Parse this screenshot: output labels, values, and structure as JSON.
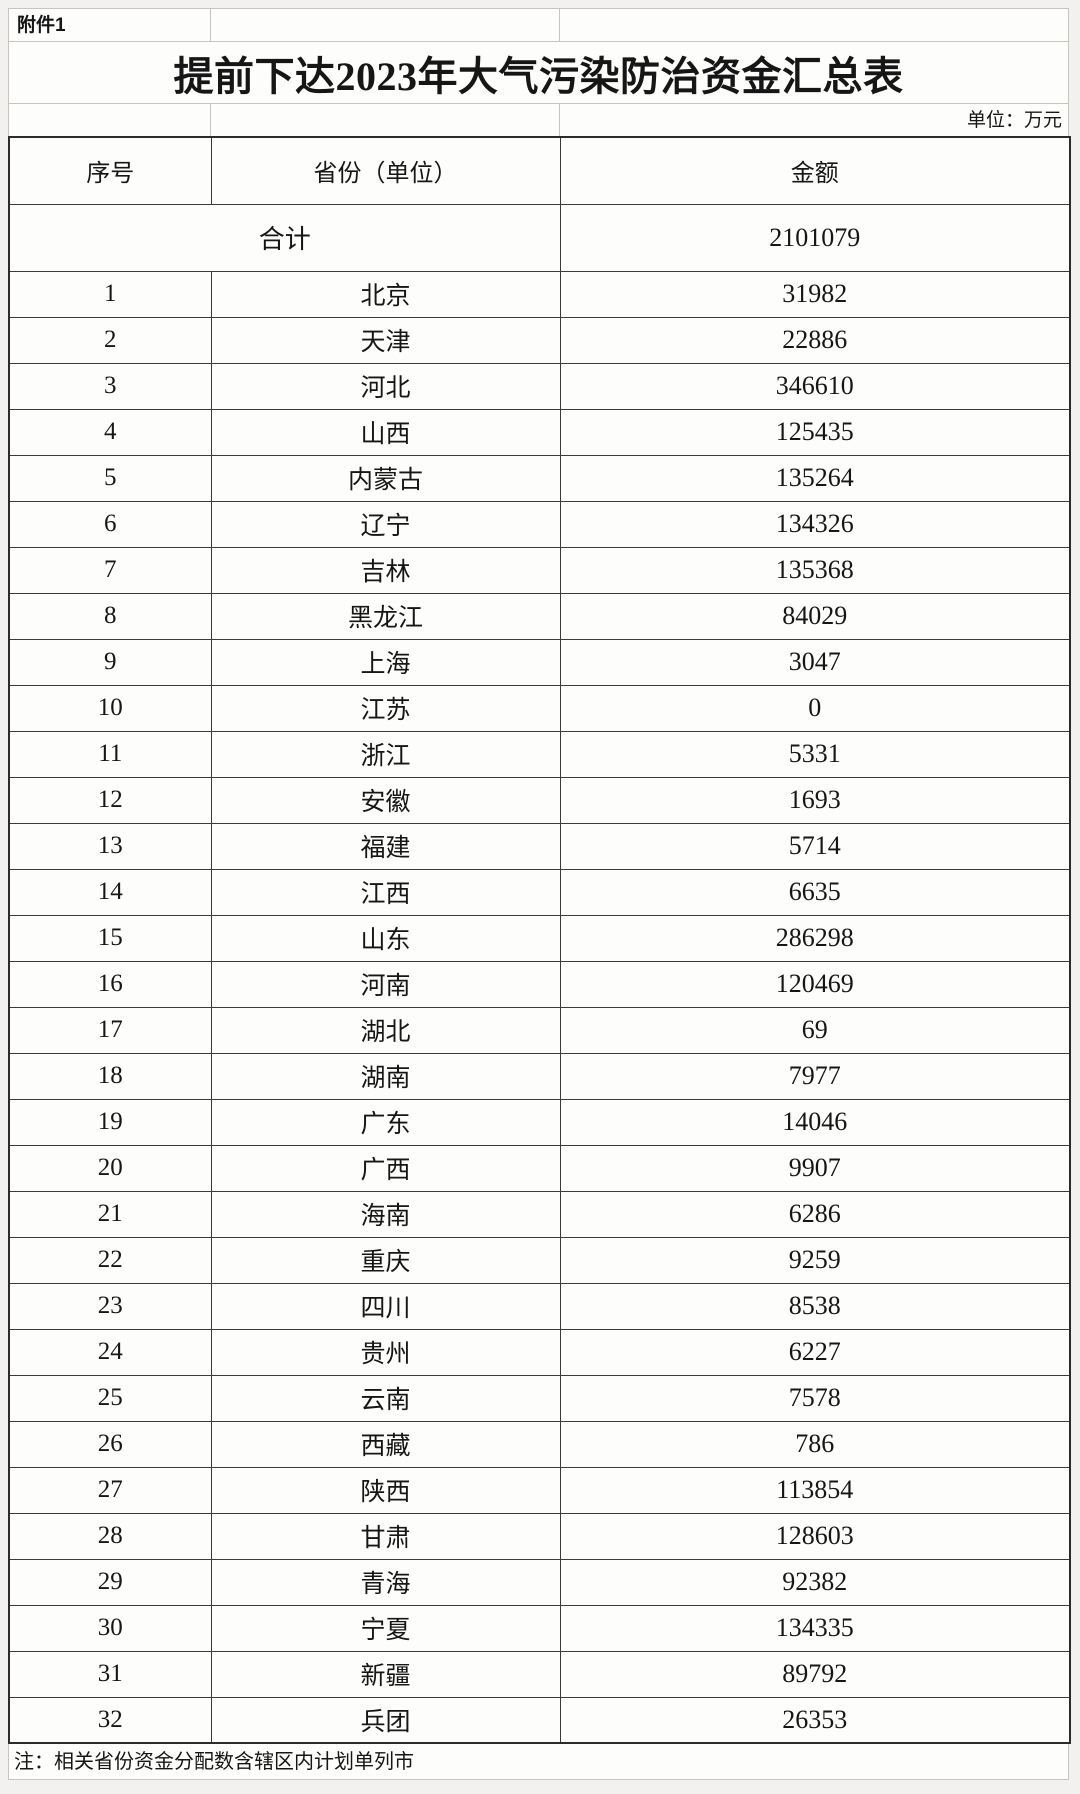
{
  "document": {
    "attachment_label": "附件1",
    "title": "提前下达2023年大气污染防治资金汇总表",
    "unit_note": "单位：万元",
    "footnote": "注：相关省份资金分配数含辖区内计划单列市"
  },
  "table": {
    "headers": [
      "序号",
      "省份（单位）",
      "金额"
    ],
    "total": {
      "label": "合计",
      "amount": "2101079"
    },
    "rows": [
      {
        "no": "1",
        "province": "北京",
        "amount": "31982"
      },
      {
        "no": "2",
        "province": "天津",
        "amount": "22886"
      },
      {
        "no": "3",
        "province": "河北",
        "amount": "346610"
      },
      {
        "no": "4",
        "province": "山西",
        "amount": "125435"
      },
      {
        "no": "5",
        "province": "内蒙古",
        "amount": "135264"
      },
      {
        "no": "6",
        "province": "辽宁",
        "amount": "134326"
      },
      {
        "no": "7",
        "province": "吉林",
        "amount": "135368"
      },
      {
        "no": "8",
        "province": "黑龙江",
        "amount": "84029"
      },
      {
        "no": "9",
        "province": "上海",
        "amount": "3047"
      },
      {
        "no": "10",
        "province": "江苏",
        "amount": "0"
      },
      {
        "no": "11",
        "province": "浙江",
        "amount": "5331"
      },
      {
        "no": "12",
        "province": "安徽",
        "amount": "1693"
      },
      {
        "no": "13",
        "province": "福建",
        "amount": "5714"
      },
      {
        "no": "14",
        "province": "江西",
        "amount": "6635"
      },
      {
        "no": "15",
        "province": "山东",
        "amount": "286298"
      },
      {
        "no": "16",
        "province": "河南",
        "amount": "120469"
      },
      {
        "no": "17",
        "province": "湖北",
        "amount": "69"
      },
      {
        "no": "18",
        "province": "湖南",
        "amount": "7977"
      },
      {
        "no": "19",
        "province": "广东",
        "amount": "14046"
      },
      {
        "no": "20",
        "province": "广西",
        "amount": "9907"
      },
      {
        "no": "21",
        "province": "海南",
        "amount": "6286"
      },
      {
        "no": "22",
        "province": "重庆",
        "amount": "9259"
      },
      {
        "no": "23",
        "province": "四川",
        "amount": "8538"
      },
      {
        "no": "24",
        "province": "贵州",
        "amount": "6227"
      },
      {
        "no": "25",
        "province": "云南",
        "amount": "7578"
      },
      {
        "no": "26",
        "province": "西藏",
        "amount": "786"
      },
      {
        "no": "27",
        "province": "陕西",
        "amount": "113854"
      },
      {
        "no": "28",
        "province": "甘肃",
        "amount": "128603"
      },
      {
        "no": "29",
        "province": "青海",
        "amount": "92382"
      },
      {
        "no": "30",
        "province": "宁夏",
        "amount": "134335"
      },
      {
        "no": "31",
        "province": "新疆",
        "amount": "89792"
      },
      {
        "no": "32",
        "province": "兵团",
        "amount": "26353"
      }
    ]
  },
  "colors": {
    "page_background": "#f2f1ef",
    "cell_background": "#fdfdfc",
    "grid_dark": "#3a3a3a",
    "grid_light": "#c7c3bd",
    "text": "#161616"
  }
}
